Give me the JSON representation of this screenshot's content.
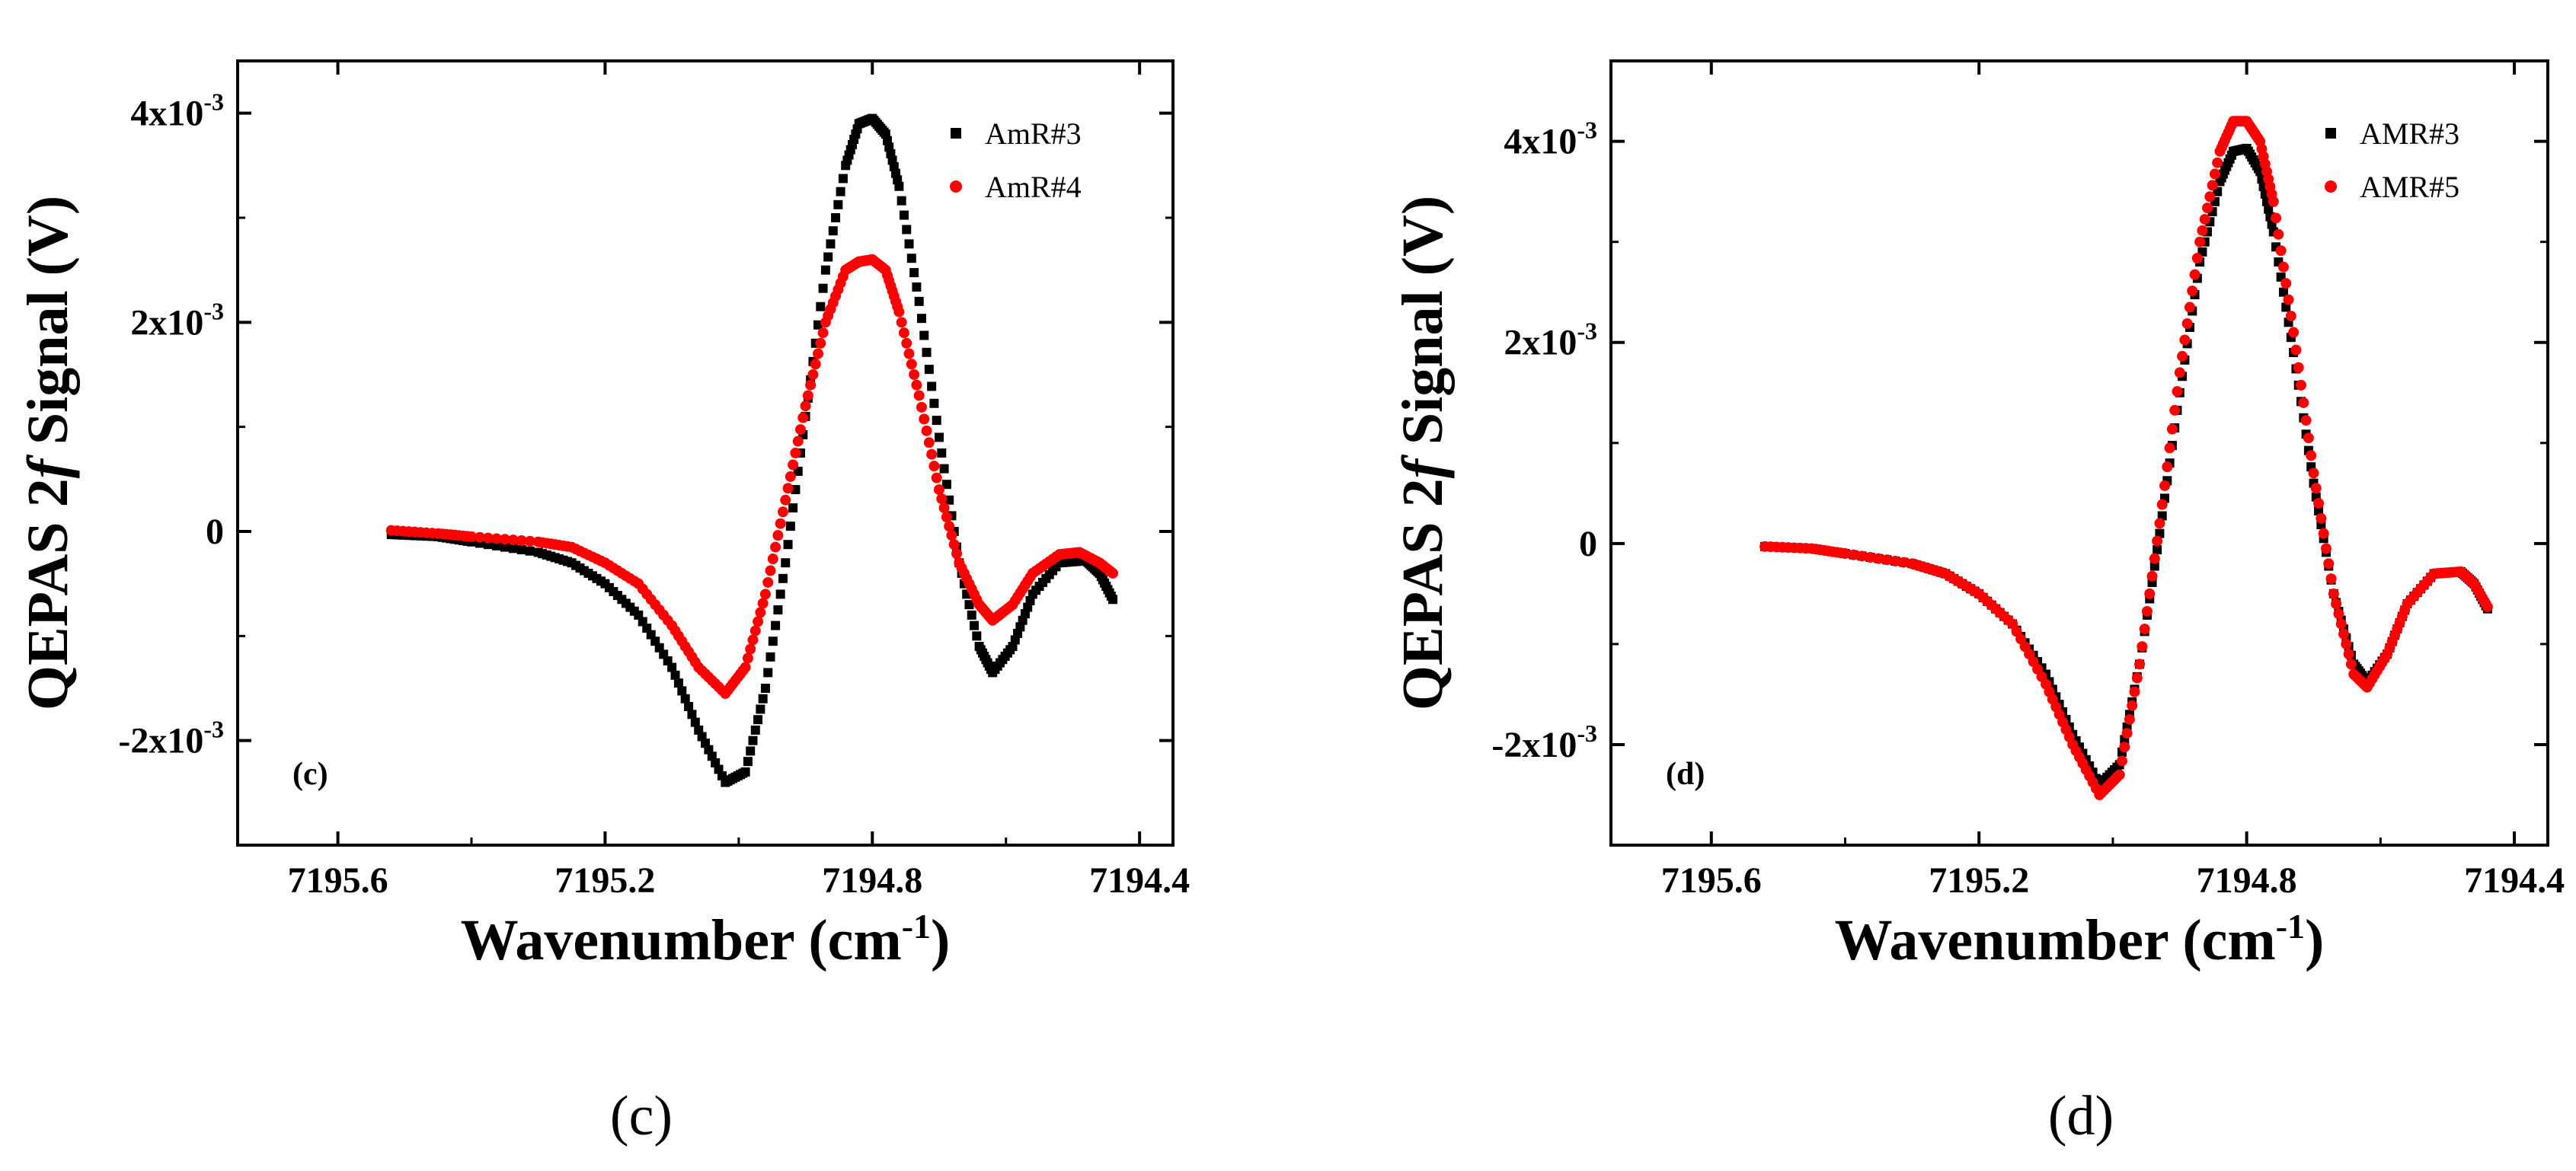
{
  "chart_data": [
    {
      "type": "scatter",
      "panel": "c",
      "panel_tag": "(c)",
      "caption": "(c)",
      "xlabel": "Wavenumber (cm",
      "xlabel_sup": "-1",
      "xlabel_close": ")",
      "ylabel_pre": "QEPAS 2",
      "ylabel_italic": "f",
      "ylabel_post": " Signal (V)",
      "xlim": [
        7195.75,
        7194.35
      ],
      "ylim": [
        -0.003,
        0.0045
      ],
      "x_ticks": [
        {
          "value": 7195.6,
          "label": "7195.6"
        },
        {
          "value": 7195.2,
          "label": "7195.2"
        },
        {
          "value": 7194.8,
          "label": "7194.8"
        },
        {
          "value": 7194.4,
          "label": "7194.4"
        }
      ],
      "y_ticks": [
        {
          "value": 0.004,
          "base": "4x10",
          "exp": "-3"
        },
        {
          "value": 0.002,
          "base": "2x10",
          "exp": "-3"
        },
        {
          "value": 0,
          "base": "0",
          "exp": ""
        },
        {
          "value": -0.002,
          "base": "-2x10",
          "exp": "-3"
        }
      ],
      "legend_position": "top-right",
      "series": [
        {
          "name": "AmR#3",
          "color": "#000000",
          "marker": "square",
          "x": [
            7195.52,
            7195.45,
            7195.4,
            7195.3,
            7195.25,
            7195.2,
            7195.15,
            7195.1,
            7195.06,
            7195.02,
            7194.99,
            7194.96,
            7194.93,
            7194.9,
            7194.87,
            7194.84,
            7194.82,
            7194.8,
            7194.78,
            7194.76,
            7194.73,
            7194.7,
            7194.67,
            7194.64,
            7194.62,
            7194.59,
            7194.56,
            7194.52,
            7194.48,
            7194.46,
            7194.44
          ],
          "y": [
            -3e-05,
            -5e-05,
            -0.0001,
            -0.0002,
            -0.0003,
            -0.0005,
            -0.0008,
            -0.0013,
            -0.0019,
            -0.0024,
            -0.0023,
            -0.0015,
            -0.0003,
            0.0011,
            0.0025,
            0.0035,
            0.0039,
            0.00395,
            0.0038,
            0.0033,
            0.0022,
            0.0009,
            -0.0003,
            -0.0011,
            -0.00135,
            -0.0011,
            -0.0006,
            -0.0003,
            -0.00028,
            -0.0004,
            -0.00065
          ]
        },
        {
          "name": "AmR#4",
          "color": "#ff0000",
          "marker": "circle",
          "x": [
            7195.52,
            7195.45,
            7195.4,
            7195.3,
            7195.25,
            7195.2,
            7195.15,
            7195.1,
            7195.06,
            7195.02,
            7194.99,
            7194.96,
            7194.93,
            7194.9,
            7194.87,
            7194.84,
            7194.82,
            7194.8,
            7194.78,
            7194.76,
            7194.73,
            7194.7,
            7194.67,
            7194.64,
            7194.62,
            7194.59,
            7194.56,
            7194.52,
            7194.49,
            7194.46,
            7194.44
          ],
          "y": [
            1e-05,
            -2e-05,
            -5e-05,
            -0.0001,
            -0.00015,
            -0.0003,
            -0.0005,
            -0.0009,
            -0.0013,
            -0.00155,
            -0.0013,
            -0.0006,
            0.0003,
            0.0012,
            0.002,
            0.0025,
            0.00258,
            0.0026,
            0.0025,
            0.0021,
            0.0013,
            0.0004,
            -0.0003,
            -0.0007,
            -0.00085,
            -0.0007,
            -0.0004,
            -0.00022,
            -0.0002,
            -0.0003,
            -0.0004
          ]
        }
      ]
    },
    {
      "type": "scatter",
      "panel": "d",
      "panel_tag": "(d)",
      "caption": "(d)",
      "xlabel": "Wavenumber (cm",
      "xlabel_sup": "-1",
      "xlabel_close": ")",
      "ylabel_pre": "QEPAS 2",
      "ylabel_italic": "f",
      "ylabel_post": " Signal (V)",
      "xlim": [
        7195.75,
        7194.35
      ],
      "ylim": [
        -0.003,
        0.0048
      ],
      "x_ticks": [
        {
          "value": 7195.6,
          "label": "7195.6"
        },
        {
          "value": 7195.2,
          "label": "7195.2"
        },
        {
          "value": 7194.8,
          "label": "7194.8"
        },
        {
          "value": 7194.4,
          "label": "7194.4"
        }
      ],
      "y_ticks": [
        {
          "value": 0.004,
          "base": "4x10",
          "exp": "-3"
        },
        {
          "value": 0.002,
          "base": "2x10",
          "exp": "-3"
        },
        {
          "value": 0,
          "base": "0",
          "exp": ""
        },
        {
          "value": -0.002,
          "base": "-2x10",
          "exp": "-3"
        }
      ],
      "legend_position": "top-right",
      "series": [
        {
          "name": "AMR#3",
          "color": "#000000",
          "marker": "square",
          "x": [
            7195.52,
            7195.45,
            7195.4,
            7195.3,
            7195.25,
            7195.2,
            7195.15,
            7195.1,
            7195.06,
            7195.02,
            7194.99,
            7194.96,
            7194.93,
            7194.9,
            7194.87,
            7194.84,
            7194.82,
            7194.8,
            7194.78,
            7194.76,
            7194.73,
            7194.7,
            7194.67,
            7194.64,
            7194.62,
            7194.59,
            7194.56,
            7194.52,
            7194.48,
            7194.46,
            7194.44
          ],
          "y": [
            -3e-05,
            -5e-05,
            -0.0001,
            -0.0002,
            -0.0003,
            -0.0005,
            -0.0008,
            -0.0013,
            -0.0019,
            -0.0024,
            -0.0022,
            -0.0012,
            0.0001,
            0.0015,
            0.0028,
            0.0036,
            0.0039,
            0.00393,
            0.0037,
            0.0031,
            0.0019,
            0.0006,
            -0.0005,
            -0.0012,
            -0.00138,
            -0.0011,
            -0.0006,
            -0.0003,
            -0.00028,
            -0.0004,
            -0.00065
          ]
        },
        {
          "name": "AMR#5",
          "color": "#ff0000",
          "marker": "circle",
          "x": [
            7195.52,
            7195.45,
            7195.4,
            7195.3,
            7195.25,
            7195.2,
            7195.15,
            7195.1,
            7195.06,
            7195.02,
            7194.99,
            7194.96,
            7194.93,
            7194.9,
            7194.87,
            7194.84,
            7194.82,
            7194.8,
            7194.78,
            7194.76,
            7194.73,
            7194.7,
            7194.67,
            7194.64,
            7194.62,
            7194.59,
            7194.56,
            7194.52,
            7194.48,
            7194.46,
            7194.44
          ],
          "y": [
            -3e-05,
            -5e-05,
            -0.0001,
            -0.0002,
            -0.0003,
            -0.0005,
            -0.0008,
            -0.0014,
            -0.002,
            -0.0025,
            -0.0023,
            -0.0012,
            0.0002,
            0.0017,
            0.003,
            0.0039,
            0.0042,
            0.0042,
            0.004,
            0.0034,
            0.0021,
            0.0007,
            -0.0005,
            -0.0013,
            -0.00143,
            -0.0011,
            -0.0006,
            -0.0003,
            -0.00028,
            -0.0004,
            -0.00063
          ]
        }
      ]
    }
  ]
}
